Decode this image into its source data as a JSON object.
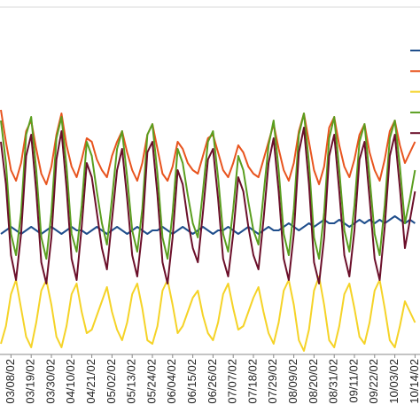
{
  "chart_data": {
    "type": "line",
    "categories": [
      null,
      null,
      "03/08/02",
      null,
      null,
      null,
      "03/19/02",
      null,
      null,
      null,
      "03/30/02",
      null,
      null,
      null,
      "04/10/02",
      null,
      null,
      null,
      "04/21/02",
      null,
      null,
      null,
      "05/02/02",
      null,
      null,
      null,
      "05/13/02",
      null,
      null,
      null,
      "05/24/02",
      null,
      null,
      null,
      "06/04/02",
      null,
      null,
      null,
      "06/15/02",
      null,
      null,
      null,
      "06/26/02",
      null,
      null,
      null,
      "07/07/02",
      null,
      null,
      null,
      "07/18/02",
      null,
      null,
      null,
      "07/29/02",
      null,
      null,
      null,
      "08/09/02",
      null,
      null,
      null,
      "08/20/02",
      null,
      null,
      null,
      "08/31/02",
      null,
      null,
      null,
      "09/11/02",
      null,
      null,
      null,
      "09/22/02",
      null,
      null,
      null,
      "10/03/02",
      null,
      null,
      null,
      "10/14/02"
    ],
    "series": [
      {
        "color": "#1f4e8c",
        "values": [
          34,
          35,
          36,
          35,
          34,
          35,
          36,
          35,
          34,
          35,
          36,
          35,
          34,
          35,
          36,
          35,
          35,
          34,
          35,
          36,
          35,
          34,
          35,
          36,
          35,
          34,
          35,
          36,
          35,
          34,
          35,
          35,
          36,
          35,
          34,
          35,
          36,
          35,
          34,
          35,
          36,
          35,
          34,
          35,
          35,
          36,
          35,
          34,
          35,
          36,
          35,
          34,
          35,
          36,
          35,
          35,
          36,
          37,
          36,
          35,
          36,
          37,
          36,
          37,
          38,
          37,
          37,
          38,
          37,
          36,
          37,
          38,
          37,
          38,
          37,
          38,
          37,
          38,
          39,
          38,
          37,
          38,
          37
        ]
      },
      {
        "color": "#e8541e",
        "values": [
          69,
          60,
          52,
          49,
          54,
          63,
          66,
          58,
          51,
          48,
          53,
          62,
          68,
          59,
          53,
          50,
          55,
          61,
          60,
          55,
          52,
          50,
          56,
          60,
          63,
          57,
          52,
          49,
          54,
          62,
          65,
          58,
          51,
          49,
          53,
          60,
          58,
          54,
          52,
          51,
          56,
          61,
          62,
          57,
          52,
          50,
          54,
          59,
          57,
          53,
          51,
          50,
          55,
          60,
          65,
          58,
          52,
          49,
          54,
          63,
          68,
          60,
          52,
          48,
          53,
          64,
          67,
          59,
          53,
          50,
          55,
          62,
          65,
          57,
          52,
          49,
          55,
          63,
          66,
          59,
          54,
          57,
          60
        ]
      },
      {
        "color": "#f5d327",
        "values": [
          3,
          8,
          17,
          21,
          13,
          5,
          2,
          9,
          18,
          21,
          14,
          5,
          2,
          8,
          17,
          20,
          12,
          6,
          7,
          11,
          15,
          19,
          12,
          7,
          4,
          9,
          17,
          20,
          13,
          4,
          3,
          8,
          18,
          21,
          14,
          6,
          8,
          12,
          16,
          18,
          11,
          6,
          4,
          9,
          17,
          20,
          13,
          7,
          8,
          12,
          16,
          19,
          12,
          6,
          3,
          9,
          18,
          21,
          14,
          4,
          1,
          7,
          18,
          22,
          14,
          4,
          2,
          8,
          17,
          20,
          13,
          5,
          3,
          9,
          18,
          21,
          13,
          4,
          2,
          8,
          15,
          12,
          9
        ]
      },
      {
        "color": "#5a9e1f",
        "values": [
          66,
          54,
          34,
          28,
          40,
          62,
          67,
          52,
          33,
          27,
          40,
          61,
          67,
          53,
          34,
          29,
          42,
          60,
          56,
          46,
          37,
          31,
          44,
          58,
          63,
          50,
          35,
          29,
          41,
          62,
          65,
          51,
          33,
          27,
          40,
          58,
          54,
          45,
          37,
          33,
          46,
          60,
          63,
          50,
          34,
          29,
          41,
          56,
          52,
          43,
          35,
          31,
          45,
          59,
          66,
          52,
          34,
          28,
          41,
          62,
          68,
          54,
          33,
          27,
          40,
          61,
          67,
          52,
          35,
          29,
          42,
          60,
          65,
          50,
          34,
          28,
          42,
          61,
          66,
          53,
          37,
          44,
          52
        ]
      },
      {
        "color": "#6b0f2a",
        "values": [
          60,
          48,
          28,
          21,
          34,
          56,
          62,
          46,
          26,
          20,
          33,
          55,
          63,
          47,
          27,
          21,
          36,
          54,
          50,
          40,
          30,
          24,
          38,
          52,
          58,
          44,
          28,
          22,
          35,
          57,
          60,
          45,
          26,
          20,
          33,
          52,
          48,
          38,
          30,
          26,
          40,
          55,
          58,
          44,
          27,
          22,
          34,
          50,
          46,
          36,
          28,
          24,
          38,
          54,
          61,
          46,
          27,
          21,
          34,
          57,
          64,
          48,
          26,
          20,
          33,
          56,
          62,
          46,
          28,
          22,
          35,
          55,
          60,
          44,
          27,
          21,
          36,
          56,
          62,
          47,
          30,
          38,
          46
        ]
      }
    ],
    "ylim": [
      0,
      100
    ]
  }
}
